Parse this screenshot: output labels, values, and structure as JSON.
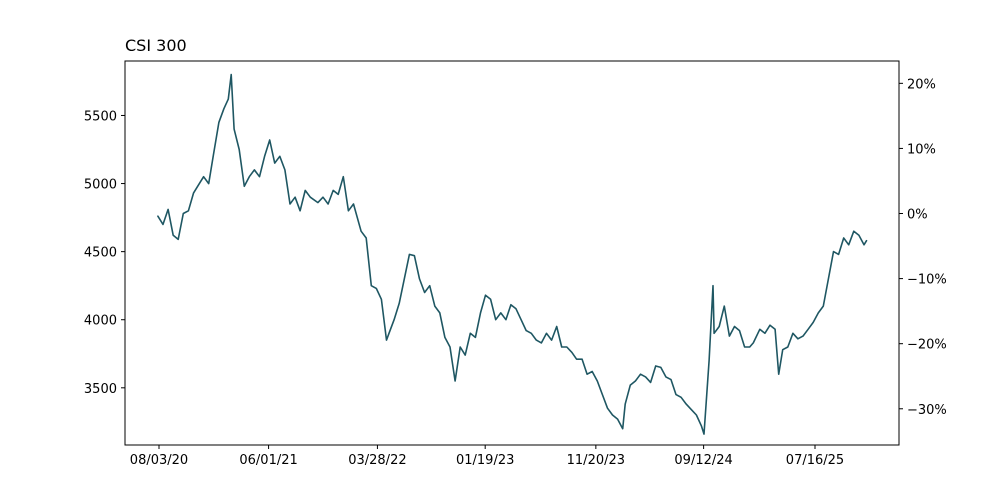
{
  "chart_data": {
    "type": "line",
    "title": "CSI 300",
    "xlabel": "",
    "ylabel": "",
    "x_tick_labels": [
      "08/03/20",
      "06/01/21",
      "03/28/22",
      "01/19/23",
      "11/20/23",
      "09/12/24",
      "07/16/25"
    ],
    "y_ticks": [
      3500,
      4000,
      4500,
      5000,
      5500
    ],
    "y_tick_labels": [
      "3500",
      "4000",
      "4500",
      "5000",
      "5500"
    ],
    "y2_ticks": [
      -30,
      -20,
      -10,
      0,
      10,
      20
    ],
    "y2_tick_labels": [
      "−30%",
      "−20%",
      "−10%",
      "0%",
      "10%",
      "20%"
    ],
    "ylim": [
      3080,
      5900
    ],
    "y2_reference_value": 4780,
    "grid": false,
    "line_color": "#1f5763",
    "series": [
      {
        "x": [
          "07/31/20",
          "08/14/20",
          "08/28/20",
          "09/11/20",
          "09/25/20",
          "10/09/20",
          "10/23/20",
          "11/06/20",
          "11/20/20",
          "12/04/20",
          "12/18/20",
          "12/31/20",
          "01/15/21",
          "01/29/21",
          "02/10/21",
          "02/18/21",
          "02/26/21",
          "03/12/21",
          "03/26/21",
          "04/09/21",
          "04/23/21",
          "05/07/21",
          "05/21/21",
          "06/04/21",
          "06/18/21",
          "07/02/21",
          "07/16/21",
          "07/30/21",
          "08/13/21",
          "08/27/21",
          "09/10/21",
          "09/24/21",
          "10/15/21",
          "10/29/21",
          "11/12/21",
          "11/26/21",
          "12/10/21",
          "12/24/21",
          "01/07/22",
          "01/21/22",
          "02/11/22",
          "02/25/22",
          "03/11/22",
          "03/25/22",
          "04/08/22",
          "04/22/22",
          "04/29/22",
          "05/13/22",
          "05/27/22",
          "06/10/22",
          "06/24/22",
          "07/08/22",
          "07/22/22",
          "08/05/22",
          "08/19/22",
          "09/02/22",
          "09/16/22",
          "09/30/22",
          "10/14/22",
          "10/28/22",
          "11/11/22",
          "11/25/22",
          "12/09/22",
          "12/23/22",
          "01/06/23",
          "01/20/23",
          "02/03/23",
          "02/17/23",
          "03/03/23",
          "03/17/23",
          "03/31/23",
          "04/14/23",
          "04/28/23",
          "05/12/23",
          "05/26/23",
          "06/09/23",
          "06/23/23",
          "07/07/23",
          "07/21/23",
          "08/04/23",
          "08/18/23",
          "09/01/23",
          "09/15/23",
          "09/28/23",
          "10/13/23",
          "10/27/23",
          "11/10/23",
          "11/24/23",
          "12/08/23",
          "12/22/23",
          "01/05/24",
          "01/19/24",
          "02/02/24",
          "02/09/24",
          "02/23/24",
          "03/08/24",
          "03/22/24",
          "04/05/24",
          "04/19/24",
          "05/03/24",
          "05/17/24",
          "05/31/24",
          "06/14/24",
          "06/28/24",
          "07/12/24",
          "07/26/24",
          "08/09/24",
          "08/23/24",
          "09/06/24",
          "09/13/24",
          "09/27/24",
          "10/08/24",
          "10/11/24",
          "10/25/24",
          "11/08/24",
          "11/22/24",
          "12/06/24",
          "12/20/24",
          "01/03/25",
          "01/17/25",
          "01/27/25",
          "02/14/25",
          "02/28/25",
          "03/14/25",
          "03/28/25",
          "04/07/25",
          "04/18/25",
          "05/02/25",
          "05/16/25",
          "05/30/25",
          "06/13/25",
          "06/27/25",
          "07/11/25",
          "07/25/25",
          "08/08/25",
          "08/22/25",
          "09/05/25",
          "09/19/25",
          "10/03/25",
          "10/17/25",
          "10/31/25",
          "11/14/25",
          "11/28/25",
          "12/05/25"
        ],
        "y": [
          4760,
          4700,
          4810,
          4620,
          4590,
          4780,
          4800,
          4930,
          4990,
          5050,
          5000,
          5210,
          5450,
          5550,
          5620,
          5800,
          5400,
          5250,
          4980,
          5050,
          5100,
          5050,
          5200,
          5320,
          5150,
          5200,
          5100,
          4850,
          4900,
          4800,
          4950,
          4900,
          4860,
          4900,
          4850,
          4950,
          4920,
          5050,
          4800,
          4850,
          4650,
          4600,
          4250,
          4230,
          4150,
          3850,
          3900,
          4000,
          4120,
          4300,
          4480,
          4470,
          4300,
          4200,
          4250,
          4100,
          4050,
          3870,
          3800,
          3550,
          3800,
          3740,
          3900,
          3870,
          4050,
          4180,
          4150,
          4000,
          4050,
          4000,
          4110,
          4080,
          4000,
          3920,
          3900,
          3850,
          3830,
          3900,
          3850,
          3950,
          3800,
          3800,
          3760,
          3710,
          3710,
          3600,
          3620,
          3550,
          3450,
          3350,
          3300,
          3270,
          3200,
          3380,
          3520,
          3550,
          3600,
          3580,
          3540,
          3660,
          3650,
          3580,
          3560,
          3450,
          3430,
          3380,
          3340,
          3300,
          3220,
          3160,
          3700,
          4250,
          3900,
          3950,
          4100,
          3880,
          3950,
          3920,
          3800,
          3800,
          3830,
          3930,
          3900,
          3960,
          3930,
          3600,
          3780,
          3800,
          3900,
          3860,
          3880,
          3930,
          3980,
          4050,
          4100,
          4300,
          4500,
          4480,
          4600,
          4550,
          4650,
          4620,
          4550,
          4580
        ]
      }
    ]
  }
}
